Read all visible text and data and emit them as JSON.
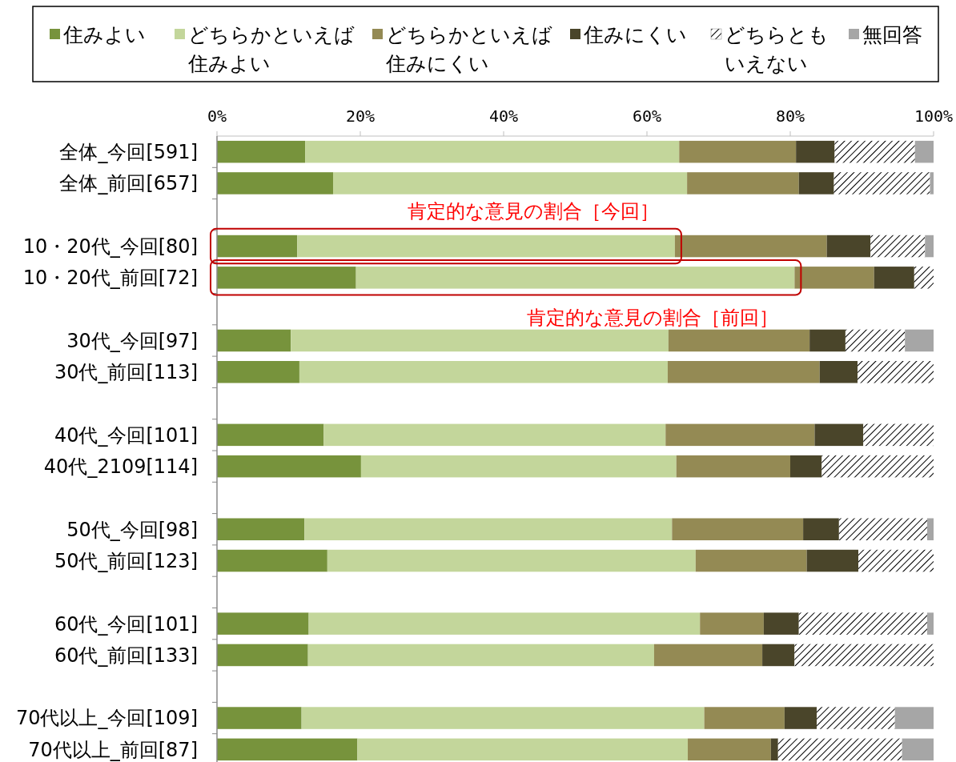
{
  "chart_data": {
    "type": "bar",
    "orientation": "horizontal",
    "stacked": true,
    "categories": [
      "全体_今回[591]",
      "全体_前回[657]",
      null,
      "10・20代_今回[80]",
      "10・20代_前回[72]",
      null,
      "30代_今回[97]",
      "30代_前回[113]",
      null,
      "40代_今回[101]",
      "40代_2109[114]",
      null,
      "50代_今回[98]",
      "50代_前回[123]",
      null,
      "60代_今回[101]",
      "60代_前回[133]",
      null,
      "70代以上_今回[109]",
      "70代以上_前回[87]"
    ],
    "series": [
      {
        "name": "住みよい",
        "color": "#77933c",
        "values": [
          12.3,
          16.2,
          null,
          11.2,
          19.4,
          null,
          10.3,
          11.5,
          null,
          14.9,
          20.1,
          null,
          12.2,
          15.4,
          null,
          12.8,
          12.7,
          null,
          11.8,
          19.6
        ]
      },
      {
        "name": "どちらかといえば住みよい",
        "color": "#c3d69b",
        "values": [
          52.2,
          49.4,
          null,
          52.7,
          61.2,
          null,
          52.7,
          51.4,
          null,
          47.7,
          44.0,
          null,
          51.3,
          51.4,
          null,
          54.6,
          48.3,
          null,
          56.2,
          46.1
        ]
      },
      {
        "name": "どちらかといえば住みにくい",
        "color": "#948a54",
        "values": [
          16.3,
          15.6,
          null,
          21.2,
          11.1,
          null,
          19.7,
          21.2,
          null,
          20.8,
          15.9,
          null,
          18.3,
          15.5,
          null,
          8.9,
          15.1,
          null,
          11.2,
          11.6
        ]
      },
      {
        "name": "住みにくい",
        "color": "#4a452a",
        "values": [
          5.4,
          4.9,
          null,
          6.1,
          5.6,
          null,
          5.0,
          5.3,
          null,
          6.8,
          4.4,
          null,
          5.0,
          7.2,
          null,
          4.9,
          4.5,
          null,
          4.5,
          1.0
        ]
      },
      {
        "name": "どちらともいえない",
        "color": "#000000",
        "values": [
          11.2,
          13.4,
          null,
          7.6,
          2.7,
          null,
          8.3,
          10.6,
          null,
          9.8,
          15.6,
          null,
          12.3,
          10.5,
          null,
          17.9,
          19.4,
          null,
          10.9,
          17.3
        ]
      },
      {
        "name": "無回答",
        "color": "#a6a6a6",
        "values": [
          2.6,
          0.5,
          null,
          1.2,
          null,
          null,
          4.0,
          null,
          null,
          null,
          null,
          null,
          0.9,
          null,
          null,
          0.9,
          null,
          null,
          5.4,
          4.4
        ]
      }
    ],
    "xlim": [
      0,
      100
    ],
    "xticks": [
      {
        "value": 0,
        "label": "0%"
      },
      {
        "value": 20,
        "label": "20%"
      },
      {
        "value": 40,
        "label": "40%"
      },
      {
        "value": 60,
        "label": "60%"
      },
      {
        "value": 80,
        "label": "80%"
      },
      {
        "value": 100,
        "label": "100%"
      }
    ],
    "legend": "top",
    "annotations": [
      {
        "text": "肯定的な意見の割合［今回］",
        "x": 63.9,
        "y": "10・20代_今回[80]"
      },
      {
        "text": "肯定的な意見の割合［前回］",
        "x": 80.6,
        "y": "10・20代_前回[72]"
      }
    ]
  }
}
